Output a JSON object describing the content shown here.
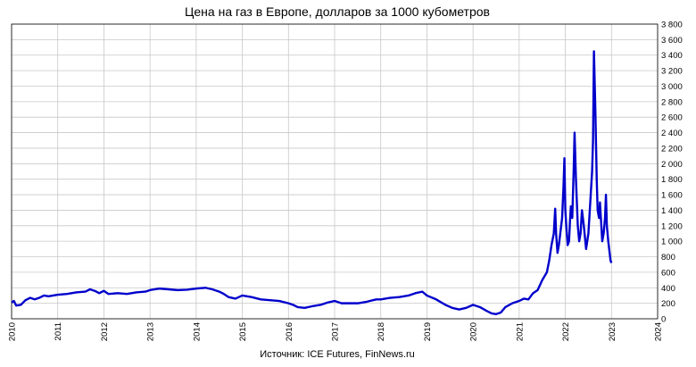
{
  "chart_data": {
    "type": "line",
    "title": "Цена на газ в Европе, долларов за 1000 кубометров",
    "source": "Источник: ICE Futures, FinNews.ru",
    "xlabel": "",
    "ylabel": "",
    "xlim": [
      2010,
      2024
    ],
    "ylim": [
      0,
      3800
    ],
    "x_ticks": [
      "2010",
      "2011",
      "2012",
      "2013",
      "2014",
      "2015",
      "2016",
      "2017",
      "2018",
      "2019",
      "2020",
      "2021",
      "2022",
      "2023",
      "2024"
    ],
    "y_ticks": [
      "0",
      "200",
      "400",
      "600",
      "800",
      "1 000",
      "1 200",
      "1 400",
      "1 600",
      "1 800",
      "2 000",
      "2 200",
      "2 400",
      "2 600",
      "2 800",
      "3 000",
      "3 200",
      "3 400",
      "3 600",
      "3 800"
    ],
    "y_tick_values": [
      0,
      200,
      400,
      600,
      800,
      1000,
      1200,
      1400,
      1600,
      1800,
      2000,
      2200,
      2400,
      2600,
      2800,
      3000,
      3200,
      3400,
      3600,
      3800
    ],
    "grid": true,
    "line_color": "#0000cc",
    "series": [
      {
        "x": [
          2010.0,
          2010.05,
          2010.1,
          2010.2,
          2010.3,
          2010.4,
          2010.5,
          2010.6,
          2010.7,
          2010.8,
          2010.9,
          2011.0,
          2011.2,
          2011.4,
          2011.6,
          2011.7,
          2011.8,
          2011.9,
          2012.0,
          2012.1,
          2012.3,
          2012.5,
          2012.7,
          2012.9,
          2013.0,
          2013.2,
          2013.4,
          2013.6,
          2013.8,
          2014.0,
          2014.2,
          2014.35,
          2014.5,
          2014.6,
          2014.7,
          2014.85,
          2015.0,
          2015.2,
          2015.4,
          2015.6,
          2015.8,
          2016.0,
          2016.1,
          2016.2,
          2016.35,
          2016.5,
          2016.7,
          2016.85,
          2017.0,
          2017.15,
          2017.3,
          2017.5,
          2017.7,
          2017.9,
          2018.0,
          2018.2,
          2018.4,
          2018.6,
          2018.75,
          2018.9,
          2019.0,
          2019.2,
          2019.4,
          2019.55,
          2019.7,
          2019.85,
          2020.0,
          2020.15,
          2020.3,
          2020.4,
          2020.5,
          2020.6,
          2020.7,
          2020.85,
          2021.0,
          2021.1,
          2021.2,
          2021.3,
          2021.4,
          2021.5,
          2021.6,
          2021.65,
          2021.7,
          2021.75,
          2021.78,
          2021.8,
          2021.83,
          2021.86,
          2021.9,
          2021.93,
          2021.96,
          2021.98,
          2022.0,
          2022.02,
          2022.05,
          2022.08,
          2022.1,
          2022.12,
          2022.15,
          2022.18,
          2022.2,
          2022.23,
          2022.25,
          2022.27,
          2022.3,
          2022.33,
          2022.36,
          2022.4,
          2022.45,
          2022.5,
          2022.55,
          2022.58,
          2022.6,
          2022.62,
          2022.65,
          2022.68,
          2022.7,
          2022.73,
          2022.75,
          2022.78,
          2022.8,
          2022.83,
          2022.86,
          2022.88,
          2022.9,
          2022.93,
          2022.95,
          2022.98,
          2023.0
        ],
        "y": [
          210,
          230,
          170,
          180,
          240,
          270,
          250,
          270,
          300,
          290,
          300,
          310,
          320,
          340,
          350,
          380,
          360,
          330,
          360,
          320,
          330,
          320,
          340,
          350,
          370,
          390,
          380,
          370,
          375,
          390,
          400,
          380,
          350,
          320,
          280,
          260,
          300,
          280,
          250,
          240,
          230,
          200,
          180,
          150,
          140,
          160,
          180,
          210,
          230,
          200,
          200,
          200,
          220,
          250,
          250,
          270,
          280,
          300,
          330,
          350,
          300,
          250,
          180,
          140,
          120,
          140,
          180,
          150,
          100,
          70,
          60,
          80,
          150,
          200,
          230,
          260,
          250,
          330,
          370,
          500,
          600,
          750,
          950,
          1100,
          1420,
          1100,
          850,
          950,
          1150,
          1300,
          1700,
          2070,
          1400,
          1200,
          950,
          1000,
          1250,
          1450,
          1300,
          1900,
          2400,
          1800,
          1500,
          1200,
          1000,
          1100,
          1400,
          1200,
          900,
          1100,
          1600,
          1900,
          2300,
          3450,
          2700,
          1800,
          1400,
          1300,
          1500,
          1200,
          1000,
          1100,
          1300,
          1600,
          1200,
          1000,
          900,
          750,
          720
        ]
      }
    ]
  }
}
